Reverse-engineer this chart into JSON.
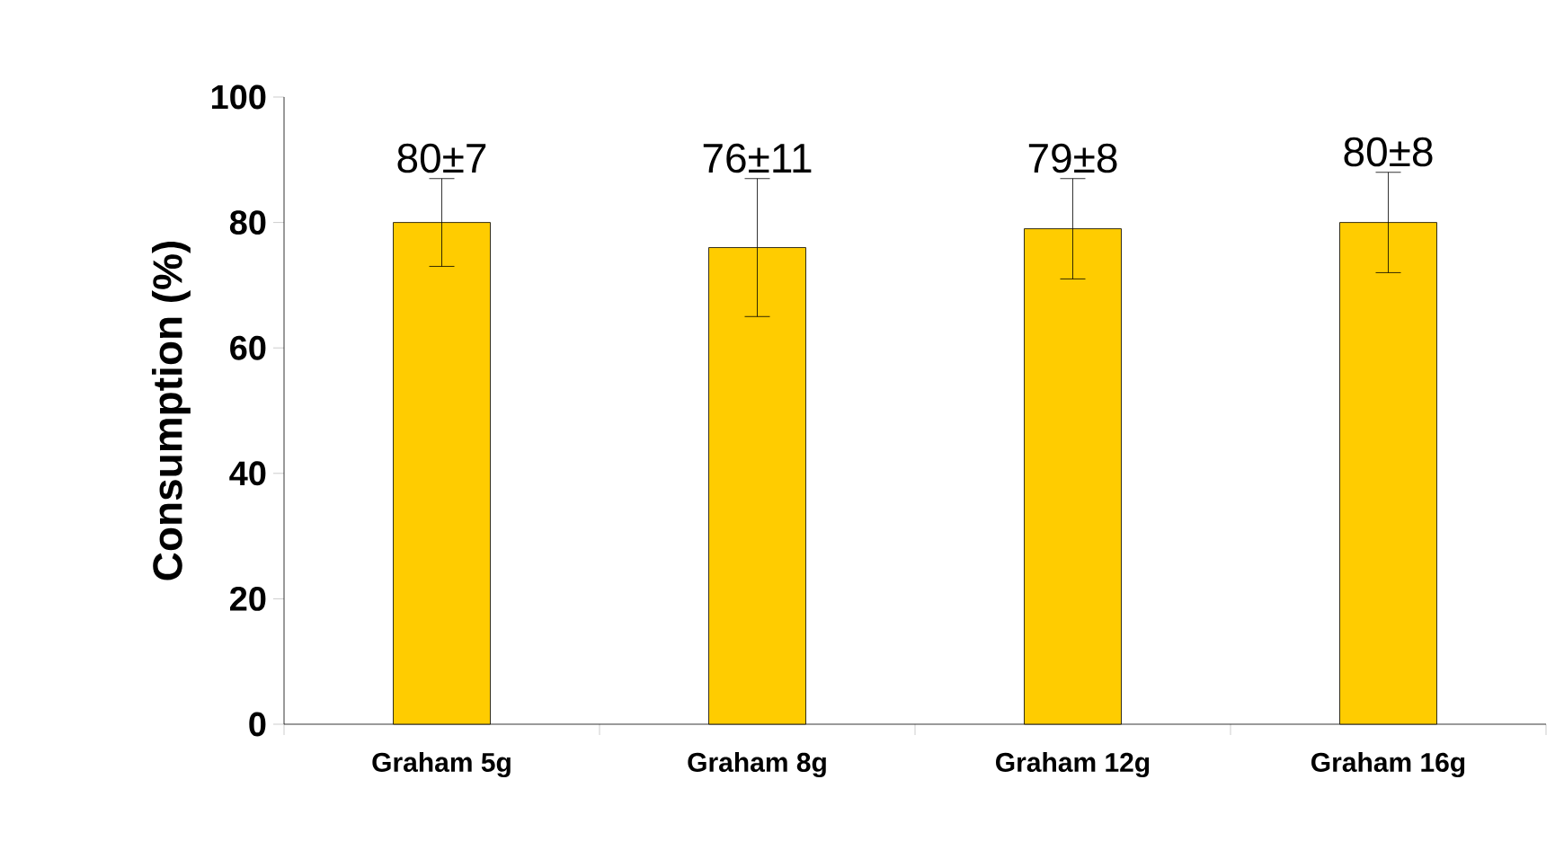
{
  "chart_data": {
    "type": "bar",
    "ylabel": "Consumption (%)",
    "categories": [
      "Graham 5g",
      "Graham 8g",
      "Graham 12g",
      "Graham 16g"
    ],
    "values": [
      80,
      76,
      79,
      80
    ],
    "errors": [
      7,
      11,
      8,
      8
    ],
    "value_labels": [
      "80±7",
      "76±11",
      "79±8",
      "80±8"
    ],
    "color": "#ffcc00",
    "ylim": [
      0,
      100
    ],
    "yticks": [
      0,
      20,
      40,
      60,
      80,
      100
    ]
  }
}
